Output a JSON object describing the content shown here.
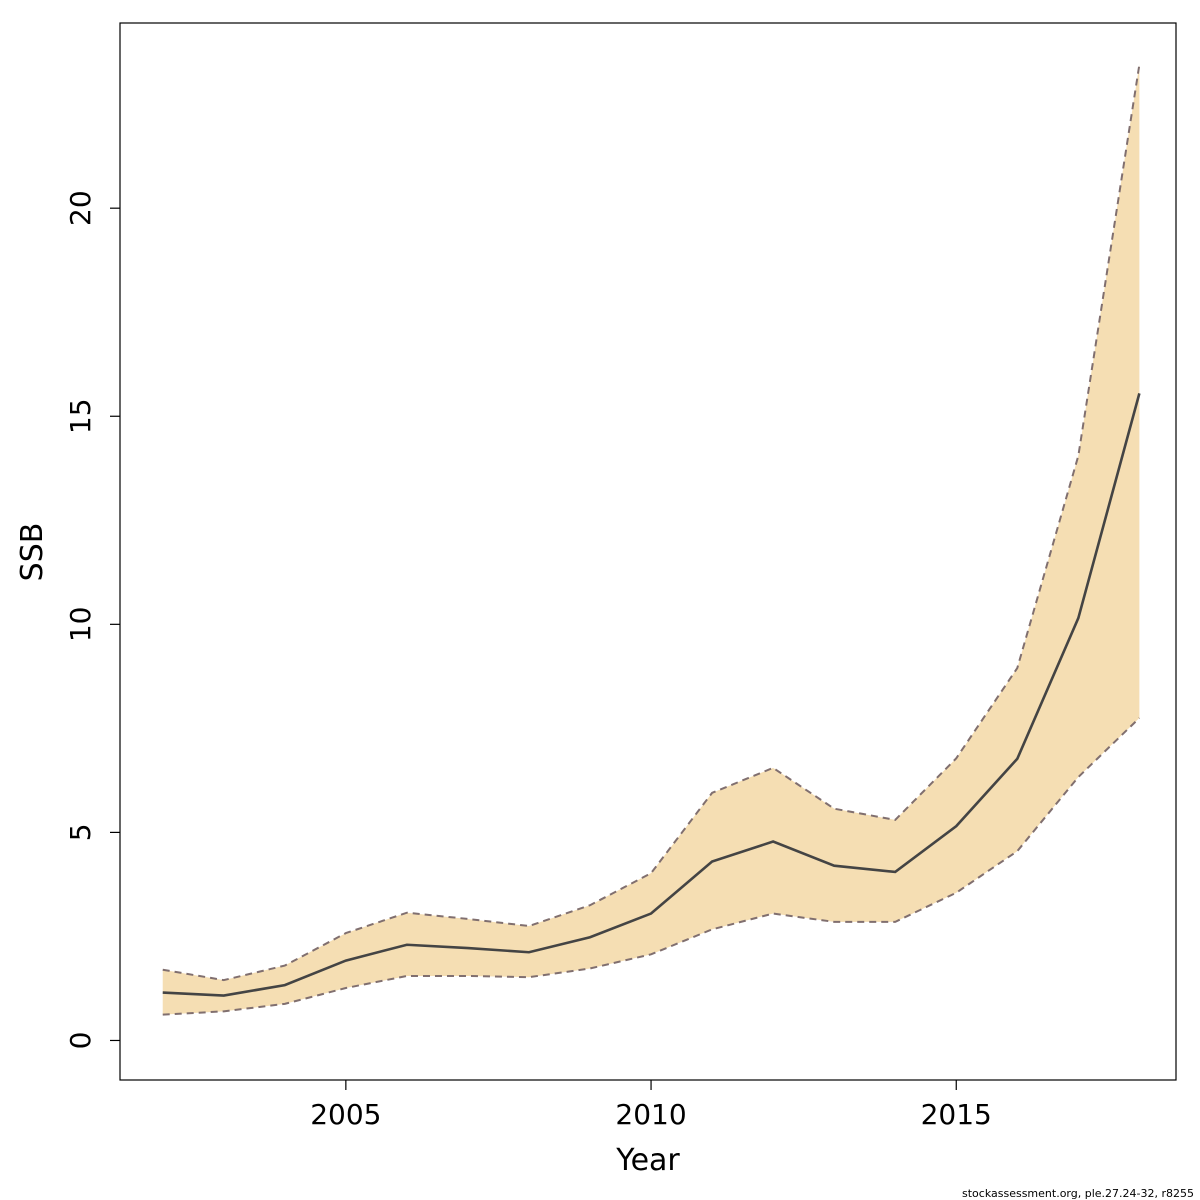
{
  "chart_data": {
    "type": "area",
    "title": "",
    "xlabel": "Year",
    "ylabel": "SSB",
    "xlim": [
      2001.3,
      2018.6
    ],
    "ylim": [
      -0.95,
      24.45
    ],
    "x_ticks": [
      2005,
      2010,
      2015
    ],
    "y_ticks": [
      0,
      5,
      10,
      15,
      20
    ],
    "grid": false,
    "legend": "none",
    "x": [
      2002,
      2003,
      2004,
      2005,
      2006,
      2007,
      2008,
      2009,
      2010,
      2011,
      2012,
      2013,
      2014,
      2015,
      2016,
      2017,
      2018
    ],
    "series": [
      {
        "role": "estimate",
        "values": [
          1.15,
          1.08,
          1.33,
          1.92,
          2.3,
          2.22,
          2.12,
          2.48,
          3.05,
          4.3,
          4.78,
          4.2,
          4.05,
          5.15,
          6.77,
          10.15,
          15.55
        ]
      },
      {
        "role": "upper",
        "values": [
          1.7,
          1.45,
          1.8,
          2.58,
          3.07,
          2.92,
          2.75,
          3.25,
          4.02,
          5.95,
          6.55,
          5.57,
          5.3,
          6.78,
          8.95,
          14.05,
          23.45
        ]
      },
      {
        "role": "lower",
        "values": [
          0.62,
          0.7,
          0.88,
          1.26,
          1.55,
          1.55,
          1.52,
          1.73,
          2.07,
          2.67,
          3.05,
          2.85,
          2.85,
          3.55,
          4.55,
          6.33,
          7.75
        ]
      }
    ],
    "colors": {
      "band_fill": "#f5deb3",
      "line": "#444444",
      "bound_line": "#806f6f"
    },
    "footer": "stockassessment.org, ple.27.24-32, r8255"
  }
}
